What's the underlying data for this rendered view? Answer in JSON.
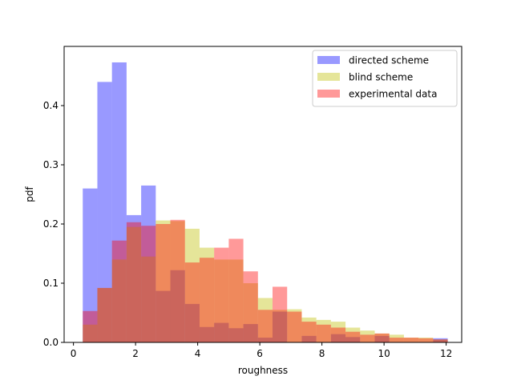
{
  "chart_data": {
    "type": "bar",
    "histogram": true,
    "xlabel": "roughness",
    "ylabel": "pdf",
    "xlim": [
      -0.3,
      12.5
    ],
    "ylim": [
      0,
      0.5
    ],
    "xticks": [
      0,
      2,
      4,
      6,
      8,
      10,
      12
    ],
    "yticks": [
      0.0,
      0.1,
      0.2,
      0.3,
      0.4
    ],
    "xtick_labels": [
      "0",
      "2",
      "4",
      "6",
      "8",
      "10",
      "12"
    ],
    "ytick_labels": [
      "0.0",
      "0.1",
      "0.2",
      "0.3",
      "0.4"
    ],
    "legend_position": "top-right",
    "series": [
      {
        "name": "directed scheme",
        "color": "#0000ff",
        "alpha": 0.4,
        "bin_edges": [
          0.3,
          0.77,
          1.24,
          1.71,
          2.18,
          2.65,
          3.12,
          3.59,
          4.06,
          4.53,
          5.0,
          5.47,
          5.94,
          6.41,
          6.88,
          7.35,
          7.82,
          8.29,
          8.76,
          9.23,
          9.7,
          10.17,
          10.64,
          11.11,
          11.58,
          12.05
        ],
        "values": [
          0.26,
          0.44,
          0.473,
          0.215,
          0.265,
          0.087,
          0.122,
          0.065,
          0.026,
          0.033,
          0.024,
          0.031,
          0.008,
          0.052,
          0.0,
          0.011,
          0.0,
          0.014,
          0.009,
          0.0,
          0.011,
          0.0,
          0.0,
          0.0,
          0.007
        ]
      },
      {
        "name": "blind scheme",
        "color": "#bfbf00",
        "alpha": 0.4,
        "bin_edges": [
          0.3,
          0.77,
          1.24,
          1.71,
          2.18,
          2.65,
          3.12,
          3.59,
          4.06,
          4.53,
          5.0,
          5.47,
          5.94,
          6.41,
          6.88,
          7.35,
          7.82,
          8.29,
          8.76,
          9.23,
          9.7,
          10.17,
          10.64,
          11.11,
          11.58,
          12.05
        ],
        "values": [
          0.03,
          0.092,
          0.14,
          0.195,
          0.145,
          0.206,
          0.205,
          0.192,
          0.16,
          0.14,
          0.14,
          0.1,
          0.075,
          0.055,
          0.056,
          0.042,
          0.038,
          0.035,
          0.025,
          0.02,
          0.015,
          0.013,
          0.008,
          0.008,
          0.005
        ]
      },
      {
        "name": "experimental data",
        "color": "#ff0000",
        "alpha": 0.4,
        "bin_edges": [
          0.3,
          0.77,
          1.24,
          1.71,
          2.18,
          2.65,
          3.12,
          3.59,
          4.06,
          4.53,
          5.0,
          5.47,
          5.94,
          6.41,
          6.88,
          7.35,
          7.82,
          8.29,
          8.76,
          9.23,
          9.7,
          10.17,
          10.64,
          11.11,
          11.58,
          12.05
        ],
        "values": [
          0.053,
          0.092,
          0.172,
          0.203,
          0.197,
          0.2,
          0.207,
          0.135,
          0.143,
          0.16,
          0.175,
          0.12,
          0.055,
          0.094,
          0.052,
          0.035,
          0.03,
          0.025,
          0.018,
          0.013,
          0.015,
          0.008,
          0.008,
          0.007,
          0.005
        ]
      }
    ]
  }
}
